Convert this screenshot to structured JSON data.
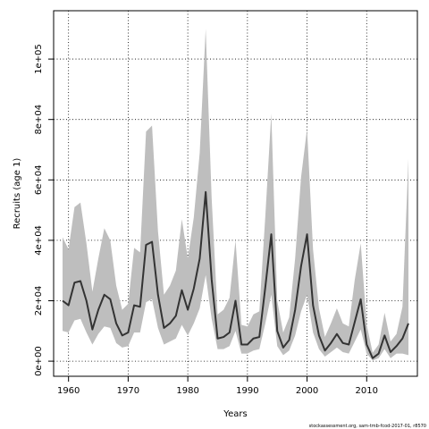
{
  "chart_data": {
    "type": "line",
    "xlabel": "Years",
    "ylabel": "Recruits (age 1)",
    "credit": "stockassessment.org, sam-tmb-fcod-2017-01, r8570",
    "xlim": [
      1957.5,
      2018.5
    ],
    "ylim": [
      -5000,
      116000
    ],
    "x_ticks": [
      1960,
      1970,
      1980,
      1990,
      2000,
      2010
    ],
    "y_ticks": [
      0,
      20000,
      40000,
      60000,
      80000,
      100000
    ],
    "y_tick_labels": [
      "0e+00",
      "2e+04",
      "4e+04",
      "6e+04",
      "8e+04",
      "1e+05"
    ],
    "grid": true,
    "colors": {
      "band": "#bebebe",
      "line": "#333333",
      "grid": "#000000"
    },
    "years": [
      1959,
      1960,
      1961,
      1962,
      1963,
      1964,
      1965,
      1966,
      1967,
      1968,
      1969,
      1970,
      1971,
      1972,
      1973,
      1974,
      1975,
      1976,
      1977,
      1978,
      1979,
      1980,
      1981,
      1982,
      1983,
      1984,
      1985,
      1986,
      1987,
      1988,
      1989,
      1990,
      1991,
      1992,
      1993,
      1994,
      1995,
      1996,
      1997,
      1998,
      1999,
      2000,
      2001,
      2002,
      2003,
      2004,
      2005,
      2006,
      2007,
      2008,
      2009,
      2010,
      2011,
      2012,
      2013,
      2014,
      2015,
      2016,
      2017
    ],
    "series": [
      {
        "values": [
          20000,
          18500,
          26000,
          26500,
          20000,
          10500,
          17000,
          22000,
          20500,
          12500,
          8500,
          9500,
          18500,
          18000,
          38500,
          39500,
          22000,
          11000,
          12500,
          15000,
          23500,
          17000,
          24000,
          34000,
          56000,
          27000,
          7500,
          8000,
          9500,
          20000,
          5500,
          5500,
          7500,
          8000,
          24500,
          42000,
          10000,
          4500,
          7000,
          17000,
          31500,
          42000,
          18500,
          8500,
          3500,
          6000,
          9000,
          6000,
          5500,
          13000,
          20500,
          5500,
          1000,
          2500,
          8500,
          3000,
          5000,
          7500,
          12500
        ]
      }
    ],
    "band_lower": [
      10000,
      9500,
      13500,
      14000,
      9500,
      5500,
      9000,
      11500,
      11000,
      6000,
      4500,
      5000,
      9500,
      9500,
      19500,
      20500,
      11000,
      5500,
      6500,
      7500,
      12000,
      8500,
      12500,
      17500,
      28500,
      14000,
      4000,
      4000,
      5000,
      10000,
      2500,
      2500,
      3500,
      4000,
      12500,
      22000,
      5000,
      2000,
      3500,
      8500,
      16500,
      22000,
      9500,
      4000,
      1500,
      3000,
      4500,
      3000,
      2500,
      6500,
      10500,
      2500,
      200,
      1000,
      4000,
      1000,
      2500,
      2500,
      2000
    ],
    "band_upper": [
      41000,
      37000,
      51000,
      52500,
      39000,
      23000,
      34000,
      44000,
      40000,
      25000,
      17000,
      19000,
      37500,
      36000,
      76000,
      78000,
      43000,
      22000,
      25000,
      30000,
      47000,
      34000,
      47500,
      69000,
      110000,
      54000,
      15500,
      17000,
      21000,
      40000,
      12000,
      11500,
      15500,
      16500,
      48000,
      82000,
      20000,
      9500,
      14500,
      34000,
      61000,
      77000,
      37000,
      17500,
      8000,
      12500,
      17500,
      12500,
      11500,
      27000,
      39000,
      12000,
      2800,
      5500,
      16000,
      6500,
      9000,
      18000,
      67000
    ]
  }
}
